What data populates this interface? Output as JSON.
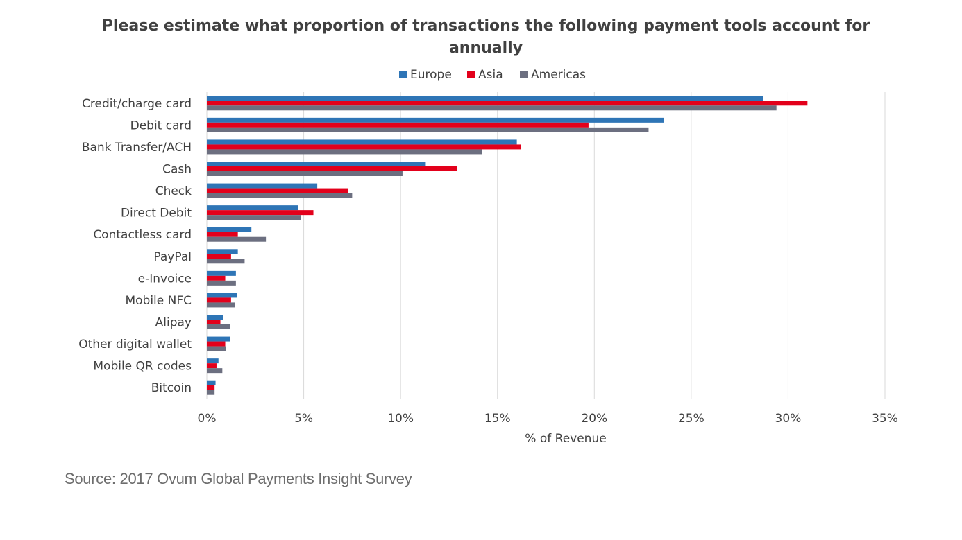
{
  "chart_data": {
    "type": "bar",
    "orientation": "horizontal",
    "title_line1": "Please estimate what proportion of transactions the following payment tools account for",
    "title_line2": "annually",
    "xlabel": "% of Revenue",
    "ylabel": "",
    "xlim": [
      0,
      35
    ],
    "x_ticks": [
      "0%",
      "5%",
      "10%",
      "15%",
      "20%",
      "25%",
      "30%",
      "35%"
    ],
    "grid": "vertical",
    "legend_position": "top-center",
    "categories": [
      "Credit/charge card",
      "Debit card",
      "Bank Transfer/ACH",
      "Cash",
      "Check",
      "Direct Debit",
      "Contactless card",
      "PayPal",
      "e-Invoice",
      "Mobile NFC",
      "Alipay",
      "Other digital wallet",
      "Mobile QR codes",
      "Bitcoin"
    ],
    "series": [
      {
        "name": "Europe",
        "color": "#2e75b6",
        "values": [
          28.7,
          23.6,
          16.0,
          11.3,
          5.7,
          4.7,
          2.3,
          1.6,
          1.5,
          1.55,
          0.85,
          1.2,
          0.6,
          0.45
        ]
      },
      {
        "name": "Asia",
        "color": "#e3001b",
        "values": [
          31.0,
          19.7,
          16.2,
          12.9,
          7.3,
          5.5,
          1.6,
          1.25,
          0.95,
          1.25,
          0.7,
          0.95,
          0.5,
          0.4
        ]
      },
      {
        "name": "Americas",
        "color": "#6c6f80",
        "values": [
          29.4,
          22.8,
          14.2,
          10.1,
          7.5,
          4.85,
          3.05,
          1.95,
          1.5,
          1.45,
          1.2,
          1.0,
          0.8,
          0.4
        ]
      }
    ]
  },
  "source_text": "Source: 2017 Ovum Global Payments Insight Survey"
}
